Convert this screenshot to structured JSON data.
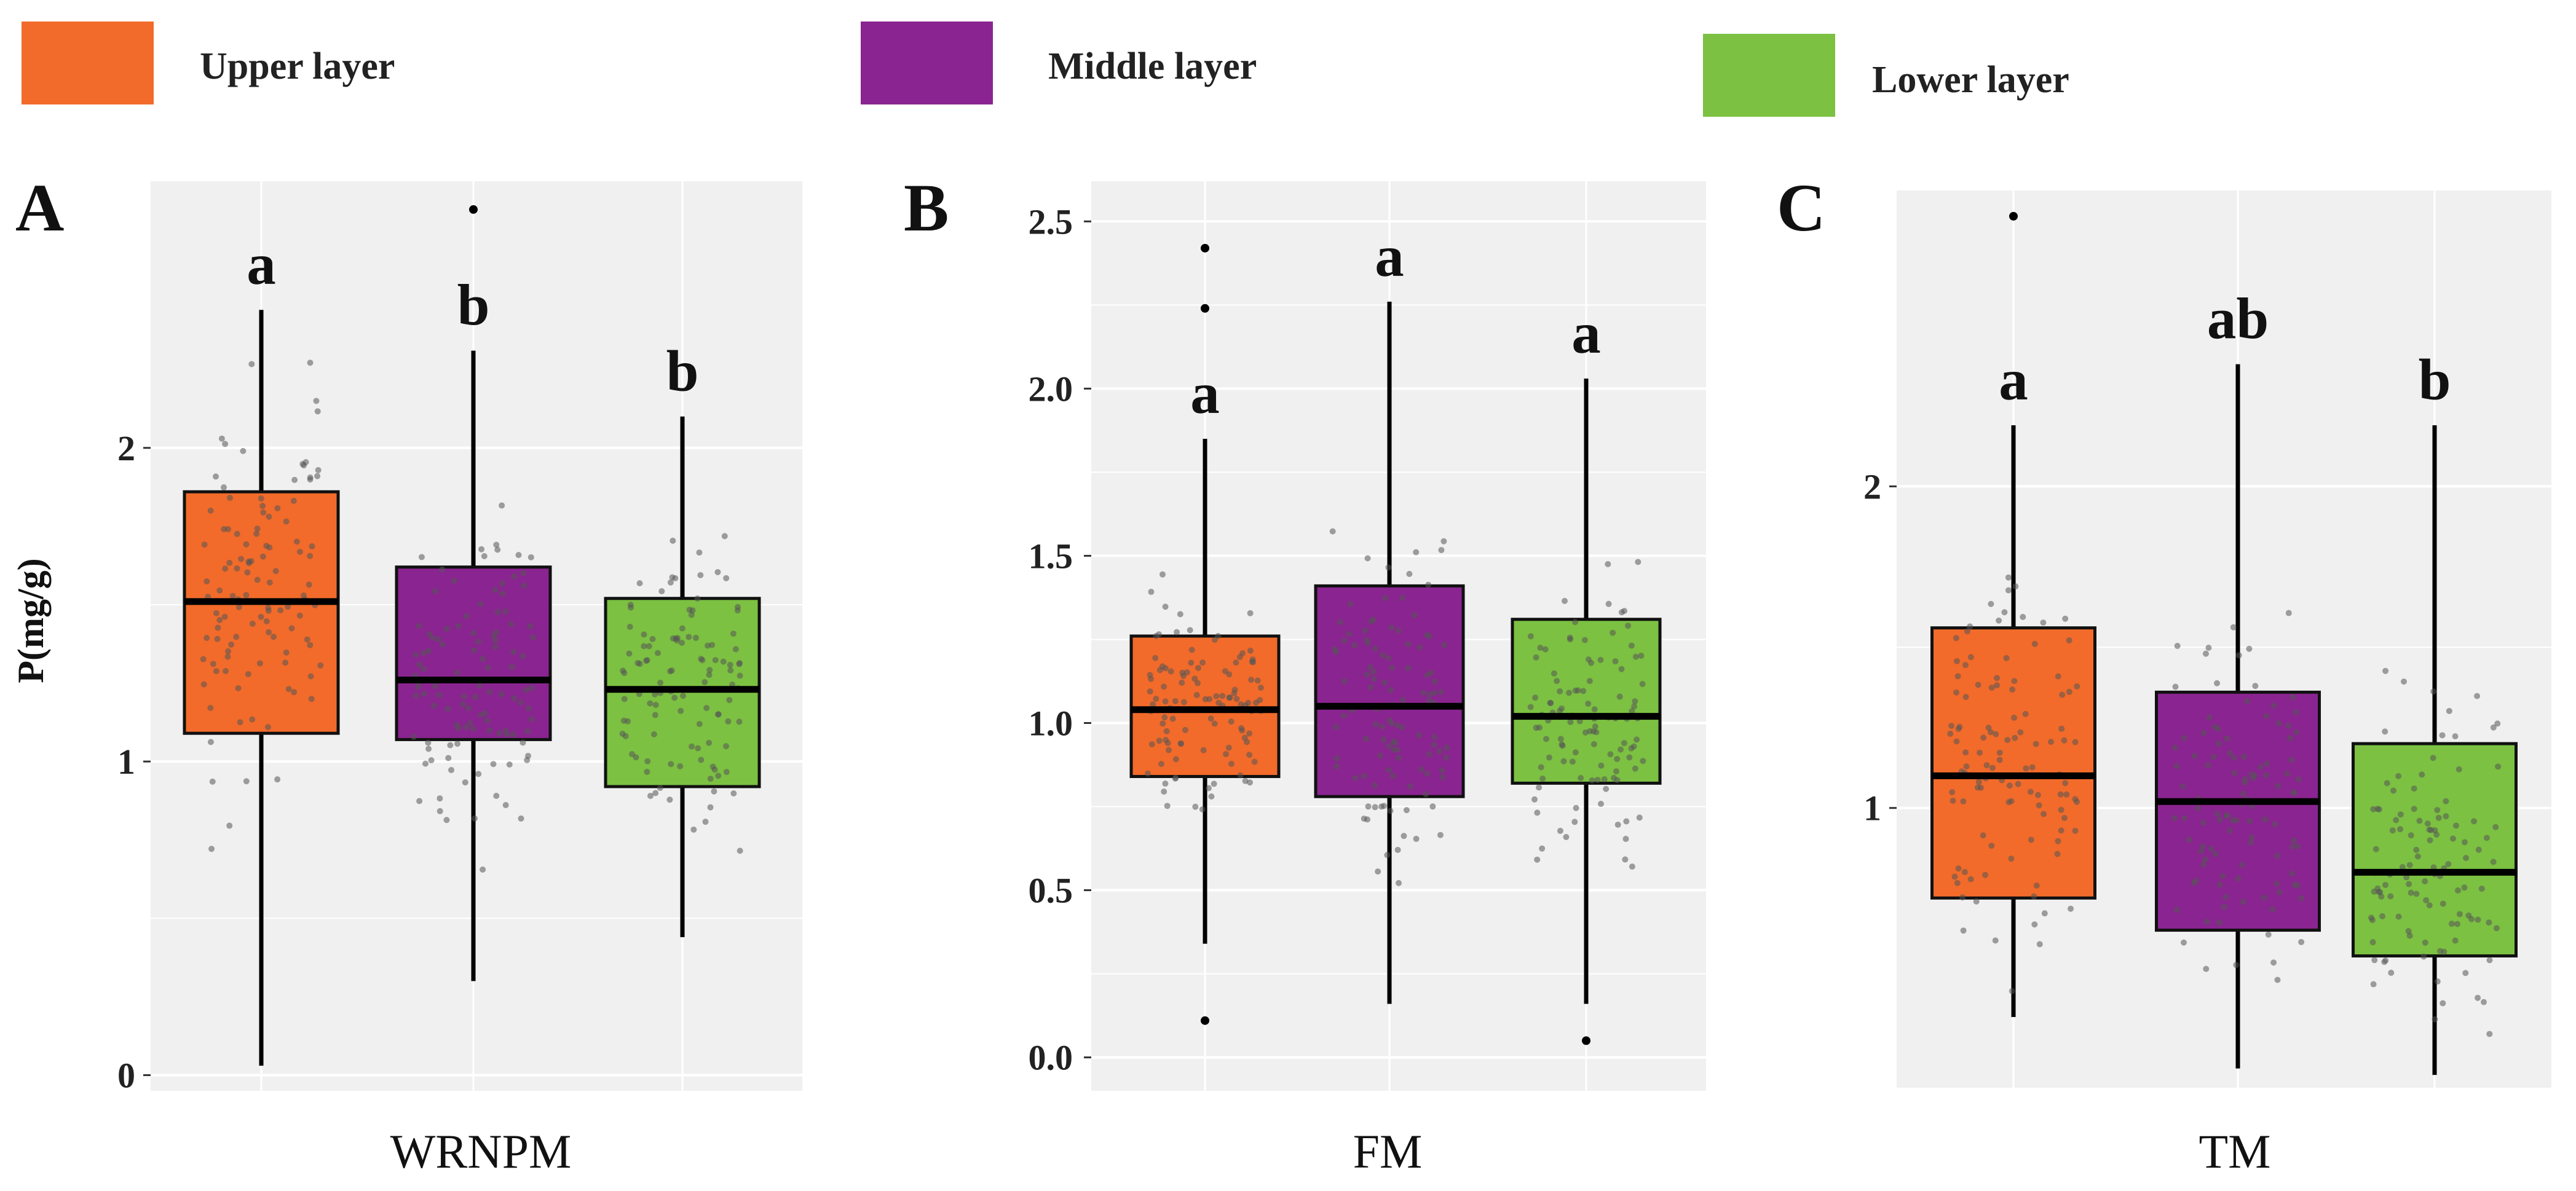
{
  "legend": {
    "items": [
      {
        "label": "Upper layer",
        "color": "#f26b2a"
      },
      {
        "label": "Middle layer",
        "color": "#8a2490"
      },
      {
        "label": "Lower layer",
        "color": "#7cc142"
      }
    ]
  },
  "y_axis_label": "P(mg/g)",
  "chart_data": [
    {
      "type": "box",
      "panel": "A",
      "xlabel": "WRNPM",
      "ylabel": "P(mg/g)",
      "ylim": [
        -0.05,
        2.85
      ],
      "y_ticks": [
        0,
        1,
        2
      ],
      "y_tick_labels": [
        "0",
        "1",
        "2"
      ],
      "grid": true,
      "boxes": [
        {
          "group": "Upper layer",
          "whisker_low": 0.03,
          "q1": 1.09,
          "median": 1.51,
          "q3": 1.86,
          "whisker_high": 2.44,
          "letter": "a",
          "outliers": []
        },
        {
          "group": "Middle layer",
          "whisker_low": 0.3,
          "q1": 1.07,
          "median": 1.26,
          "q3": 1.62,
          "whisker_high": 2.31,
          "letter": "b",
          "outliers": [
            2.76
          ]
        },
        {
          "group": "Lower layer",
          "whisker_low": 0.44,
          "q1": 0.92,
          "median": 1.23,
          "q3": 1.52,
          "whisker_high": 2.1,
          "letter": "b",
          "outliers": []
        }
      ]
    },
    {
      "type": "box",
      "panel": "B",
      "xlabel": "FM",
      "ylabel": "",
      "ylim": [
        -0.1,
        2.62
      ],
      "y_ticks": [
        0.0,
        0.5,
        1.0,
        1.5,
        2.0,
        2.5
      ],
      "y_tick_labels": [
        "0.0",
        "0.5",
        "1.0",
        "1.5",
        "2.0",
        "2.5"
      ],
      "grid": true,
      "boxes": [
        {
          "group": "Upper layer",
          "whisker_low": 0.34,
          "q1": 0.84,
          "median": 1.04,
          "q3": 1.26,
          "whisker_high": 1.85,
          "letter": "a",
          "outliers": [
            0.11,
            2.24,
            2.42
          ]
        },
        {
          "group": "Middle layer",
          "whisker_low": 0.16,
          "q1": 0.78,
          "median": 1.05,
          "q3": 1.41,
          "whisker_high": 2.26,
          "letter": "a",
          "outliers": []
        },
        {
          "group": "Lower layer",
          "whisker_low": 0.16,
          "q1": 0.82,
          "median": 1.02,
          "q3": 1.31,
          "whisker_high": 2.03,
          "letter": "a",
          "outliers": [
            0.05
          ]
        }
      ]
    },
    {
      "type": "box",
      "panel": "C",
      "xlabel": "TM",
      "ylabel": "",
      "ylim": [
        0.13,
        2.92
      ],
      "y_ticks": [
        1,
        2
      ],
      "y_tick_labels": [
        "1",
        "2"
      ],
      "grid": true,
      "boxes": [
        {
          "group": "Upper layer",
          "whisker_low": 0.35,
          "q1": 0.72,
          "median": 1.1,
          "q3": 1.56,
          "whisker_high": 2.19,
          "letter": "a",
          "outliers": [
            2.84
          ]
        },
        {
          "group": "Middle layer",
          "whisker_low": 0.19,
          "q1": 0.62,
          "median": 1.02,
          "q3": 1.36,
          "whisker_high": 2.38,
          "letter": "ab",
          "outliers": []
        },
        {
          "group": "Lower layer",
          "whisker_low": 0.17,
          "q1": 0.54,
          "median": 0.8,
          "q3": 1.2,
          "whisker_high": 2.19,
          "letter": "b",
          "outliers": []
        }
      ]
    }
  ]
}
